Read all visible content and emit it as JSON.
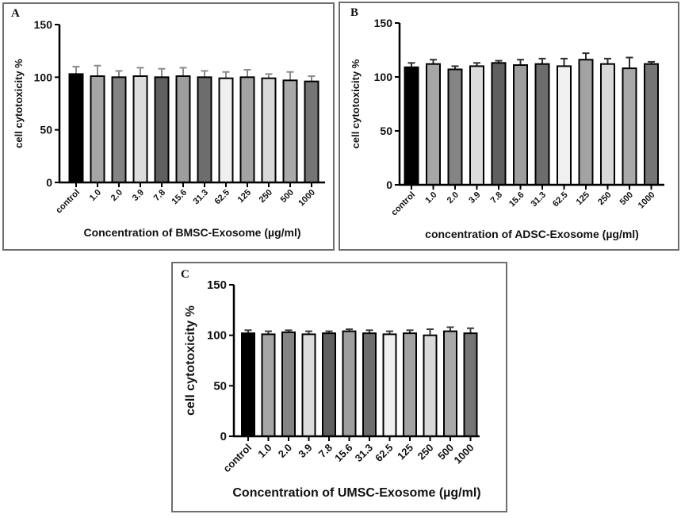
{
  "figure": {
    "background": "#ffffff",
    "panel_border_color": "#6e6e6e",
    "axis_color": "#000000",
    "bar_outline_color": "#000000"
  },
  "chart_data": [
    {
      "type": "bar",
      "letter": "A",
      "ylabel": "cell cytotoxicity %",
      "xlabel": "Concentration of  BMSC-Exosome (µg/ml)",
      "ylim": [
        0,
        150
      ],
      "yticks": [
        0,
        50,
        100,
        150
      ],
      "categories": [
        "control",
        "1.0",
        "2.0",
        "3.9",
        "7.8",
        "15.6",
        "31.3",
        "62.5",
        "125",
        "250",
        "500",
        "1000"
      ],
      "values": [
        103,
        101,
        100,
        101,
        100,
        101,
        100,
        99,
        100,
        99,
        97,
        96
      ],
      "errors": [
        7,
        10,
        6,
        8,
        8,
        8,
        6,
        6,
        7,
        4,
        8,
        5
      ],
      "bar_colors": [
        "#000000",
        "#a6a6a6",
        "#848484",
        "#dcdcdc",
        "#5f5f5f",
        "#9e9e9e",
        "#6d6d6d",
        "#f0f0f0",
        "#a3a3a3",
        "#d9d9d9",
        "#a9a9a9",
        "#757575"
      ],
      "error_color": "#8a8a8a",
      "legend": "none",
      "grid": "off"
    },
    {
      "type": "bar",
      "letter": "B",
      "ylabel": "cell cytotoxicity %",
      "xlabel": "concentration of ADSC-Exosome (µg/ml)",
      "ylim": [
        0,
        150
      ],
      "yticks": [
        0,
        50,
        100,
        150
      ],
      "categories": [
        "control",
        "1.0",
        "2.0",
        "3.9",
        "7.8",
        "15.6",
        "31.3",
        "62.5",
        "125",
        "250",
        "500",
        "1000"
      ],
      "values": [
        109,
        112,
        107,
        110,
        113,
        111,
        112,
        110,
        116,
        112,
        108,
        112
      ],
      "errors": [
        4,
        4,
        3,
        3,
        2,
        5,
        5,
        7,
        6,
        5,
        10,
        2
      ],
      "bar_colors": [
        "#000000",
        "#a6a6a6",
        "#848484",
        "#dcdcdc",
        "#5f5f5f",
        "#9e9e9e",
        "#6d6d6d",
        "#f0f0f0",
        "#a3a3a3",
        "#d9d9d9",
        "#a9a9a9",
        "#757575"
      ],
      "error_color": "#2e2e2e",
      "legend": "none",
      "grid": "off"
    },
    {
      "type": "bar",
      "letter": "C",
      "ylabel": "cell cytotoxicity %",
      "xlabel": "Concentration of UMSC-Exosome (µg/ml)",
      "ylim": [
        0,
        150
      ],
      "yticks": [
        0,
        50,
        100,
        150
      ],
      "categories": [
        "control",
        "1.0",
        "2.0",
        "3.9",
        "7.8",
        "15.6",
        "31.3",
        "62.5",
        "125",
        "250",
        "500",
        "1000"
      ],
      "values": [
        102,
        101,
        103,
        101,
        102,
        104,
        102,
        101,
        102,
        100,
        104,
        102
      ],
      "errors": [
        3,
        3,
        2,
        3,
        2,
        2,
        3,
        3,
        3,
        6,
        4,
        5
      ],
      "bar_colors": [
        "#000000",
        "#a6a6a6",
        "#848484",
        "#dcdcdc",
        "#5f5f5f",
        "#9e9e9e",
        "#6d6d6d",
        "#f0f0f0",
        "#a3a3a3",
        "#d9d9d9",
        "#a9a9a9",
        "#757575"
      ],
      "error_color": "#3a3a3a",
      "legend": "none",
      "grid": "off"
    }
  ]
}
